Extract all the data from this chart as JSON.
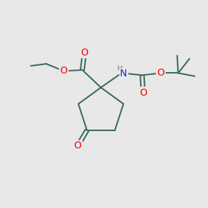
{
  "background_color": "#e8e8e8",
  "bond_color": "#3a6b5a",
  "bond_width": 1.5,
  "atom_colors": {
    "O": "#ff0000",
    "N": "#2222cc",
    "H": "#888888",
    "C": "#000000"
  },
  "figsize": [
    3.0,
    3.0
  ],
  "dpi": 100,
  "xlim": [
    0,
    10
  ],
  "ylim": [
    0,
    10
  ]
}
